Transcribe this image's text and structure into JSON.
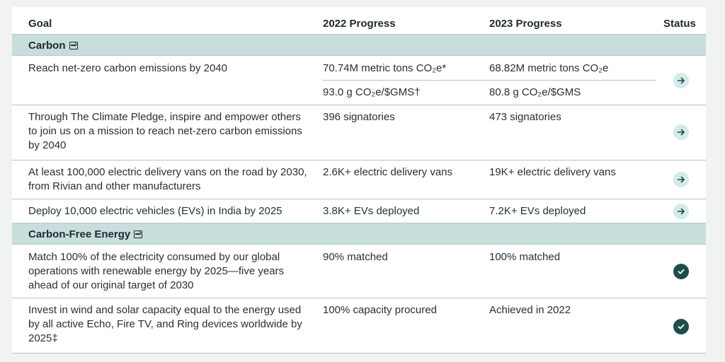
{
  "header": {
    "goal": "Goal",
    "progress_2022": "2022 Progress",
    "progress_2023": "2023 Progress",
    "status": "Status"
  },
  "sections": [
    {
      "title": "Carbon",
      "rows": [
        {
          "goal": "Reach net-zero carbon emissions by 2040",
          "y2022_line1": "70.74M metric tons CO₂e*",
          "y2023_line1": "68.82M metric tons CO₂e",
          "y2022_line2": "93.0 g CO₂e/$GMS†",
          "y2023_line2": "80.8 g CO₂e/$GMS",
          "status": "arrow-right-icon"
        },
        {
          "goal": "Through The Climate Pledge, inspire and empower others to join us on a mission to reach net-zero carbon emissions by 2040",
          "y2022": "396 signatories",
          "y2023": "473 signatories",
          "status": "arrow-right-icon"
        },
        {
          "goal": "At least 100,000 electric delivery vans on the road by 2030, from Rivian and other manufacturers",
          "y2022": "2.6K+ electric delivery vans",
          "y2023": "19K+ electric delivery vans",
          "status": "arrow-right-icon"
        },
        {
          "goal": "Deploy 10,000 electric vehicles (EVs) in India by 2025",
          "y2022": "3.8K+ EVs deployed",
          "y2023": "7.2K+ EVs deployed",
          "status": "arrow-right-icon"
        }
      ]
    },
    {
      "title": "Carbon-Free Energy",
      "rows": [
        {
          "goal": "Match 100% of the electricity consumed by our global operations with renewable energy by 2025—five years ahead of our original target of 2030",
          "y2022": "90% matched",
          "y2023": "100% matched",
          "status": "check-circle-icon"
        },
        {
          "goal": "Invest in wind and solar capacity equal to the energy used by all active Echo, Fire TV, and Ring devices worldwide by 2025‡",
          "y2022": "100% capacity procured",
          "y2023": "Achieved in 2022",
          "status": "check-circle-icon"
        }
      ]
    }
  ],
  "colors": {
    "section_band": "#c8dedc",
    "arrow_badge": "#d4ebe8",
    "check_badge": "#1d4d4c",
    "text": "#2a2f33"
  }
}
